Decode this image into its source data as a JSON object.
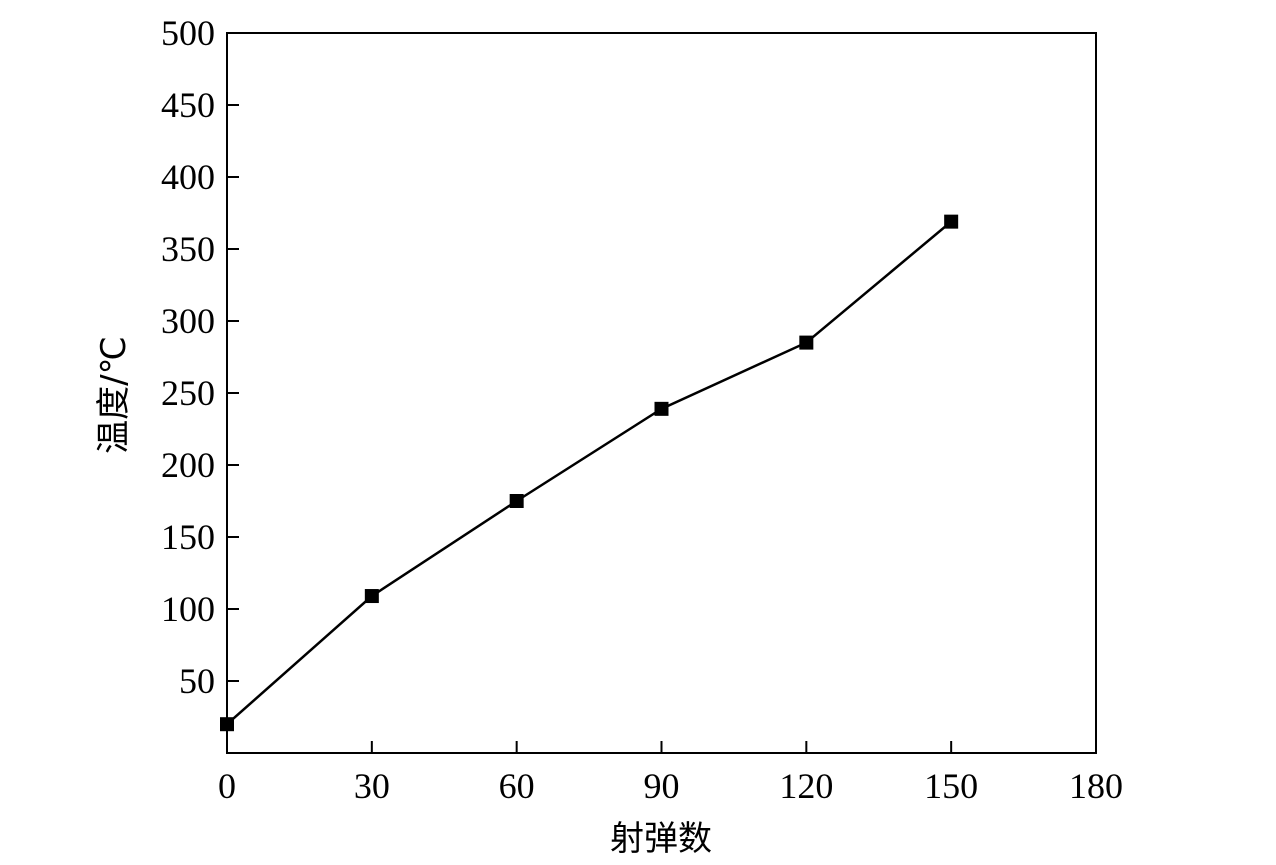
{
  "chart_data": {
    "type": "line",
    "title": "",
    "xlabel": "射弹数",
    "ylabel": "温度/℃",
    "xlim": [
      0,
      180
    ],
    "ylim": [
      0,
      500
    ],
    "x_ticks": [
      0,
      30,
      60,
      90,
      120,
      150,
      180
    ],
    "y_ticks": [
      50,
      100,
      150,
      200,
      250,
      300,
      350,
      400,
      450,
      500
    ],
    "grid": false,
    "legend": "none",
    "series": [
      {
        "marker": "square",
        "color": "#000000",
        "x": [
          0,
          30,
          60,
          90,
          120,
          150
        ],
        "y": [
          20,
          109,
          175,
          239,
          285,
          369
        ]
      }
    ]
  }
}
